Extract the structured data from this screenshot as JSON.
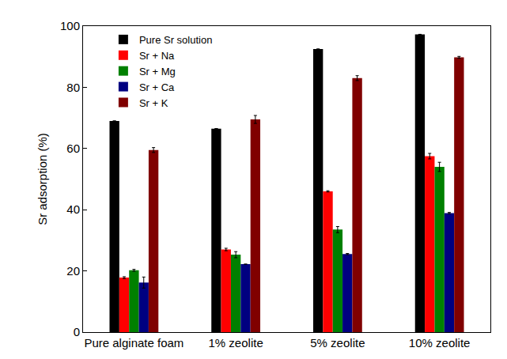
{
  "chart_data": {
    "type": "bar",
    "y_label": "Sr adsorption (%)",
    "categories": [
      "Pure alginate foam",
      "1% zeolite",
      "5% zeolite",
      "10% zeolite"
    ],
    "series": [
      {
        "name": "Pure Sr solution",
        "color": "#000000",
        "values": [
          69,
          66.5,
          92.5,
          97.3
        ],
        "errors": [
          0,
          0,
          0,
          0
        ]
      },
      {
        "name": "Sr + Na",
        "color": "#ff0000",
        "values": [
          17.8,
          27,
          46,
          57.5
        ],
        "errors": [
          0.3,
          0.4,
          0.2,
          0.9
        ]
      },
      {
        "name": "Sr + Mg",
        "color": "#008000",
        "values": [
          20.2,
          25.3,
          33.5,
          54
        ],
        "errors": [
          0.3,
          1,
          1,
          1.5
        ]
      },
      {
        "name": "Sr + Ca",
        "color": "#000080",
        "values": [
          16.2,
          22.2,
          25.5,
          38.9
        ],
        "errors": [
          1.8,
          0,
          0.2,
          0.2
        ]
      },
      {
        "name": "Sr + K",
        "color": "#800000",
        "values": [
          59.5,
          69.5,
          83,
          89.8
        ],
        "errors": [
          0.8,
          1.3,
          0.8,
          0.3
        ]
      }
    ],
    "ylim": [
      0,
      100
    ],
    "yticks": [
      0,
      20,
      40,
      60,
      80,
      100
    ],
    "grid": false,
    "legend": "top-left"
  }
}
